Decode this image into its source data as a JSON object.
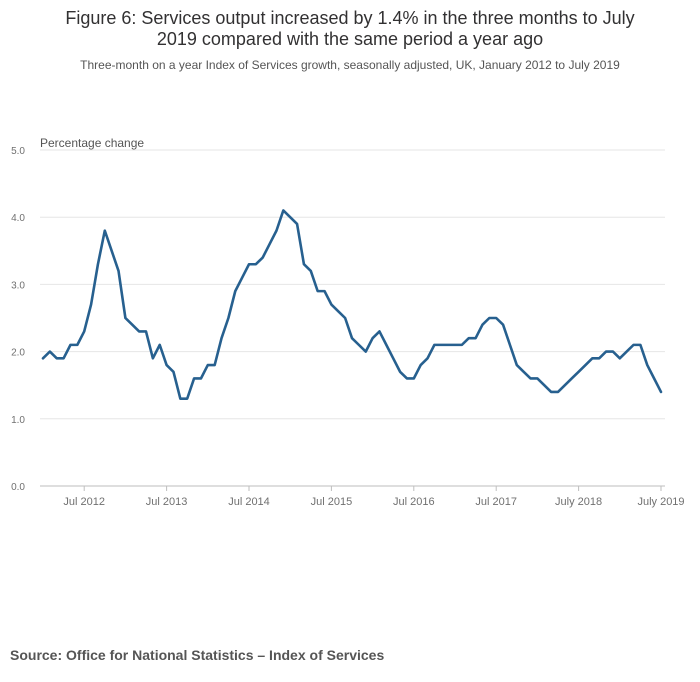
{
  "title": {
    "line1": "Figure 6: Services output increased by 1.4% in the three months to July",
    "line2": "2019 compared with the same period a year ago"
  },
  "subtitle": "Three-month on a year Index of Services growth, seasonally adjusted, UK, January 2012 to July 2019",
  "source": "Source: Office for National Statistics – Index of Services",
  "colors": {
    "line": "#27608f",
    "grid": "#e6e6e6",
    "axis": "#bebebe",
    "text": "#707070"
  },
  "chart_data": {
    "type": "line",
    "title": "Figure 6: Services output increased by 1.4% in the three months to July 2019 compared with the same period a year ago",
    "ylabel": "Percentage change",
    "xlabel": "",
    "ylim": [
      0.0,
      5.0
    ],
    "yticks": [
      0.0,
      1.0,
      2.0,
      3.0,
      4.0,
      5.0
    ],
    "ytick_labels": [
      "0.0",
      "1.0",
      "2.0",
      "3.0",
      "4.0",
      "5.0"
    ],
    "xticks": [
      {
        "index": 6,
        "label": "Jul 2012"
      },
      {
        "index": 18,
        "label": "Jul 2013"
      },
      {
        "index": 30,
        "label": "Jul 2014"
      },
      {
        "index": 42,
        "label": "Jul 2015"
      },
      {
        "index": 54,
        "label": "Jul 2016"
      },
      {
        "index": 66,
        "label": "Jul 2017"
      },
      {
        "index": 78,
        "label": "July 2018"
      },
      {
        "index": 90,
        "label": "July 2019"
      }
    ],
    "series": [
      {
        "name": "Three-month on a year Index of Services growth",
        "start": "January 2012",
        "frequency": "monthly",
        "values": [
          1.9,
          2.0,
          1.9,
          1.9,
          2.1,
          2.1,
          2.3,
          2.7,
          3.3,
          3.8,
          3.5,
          3.2,
          2.5,
          2.4,
          2.3,
          2.3,
          1.9,
          2.1,
          1.8,
          1.7,
          1.3,
          1.3,
          1.6,
          1.6,
          1.8,
          1.8,
          2.2,
          2.5,
          2.9,
          3.1,
          3.3,
          3.3,
          3.4,
          3.6,
          3.8,
          4.1,
          4.0,
          3.9,
          3.3,
          3.2,
          2.9,
          2.9,
          2.7,
          2.6,
          2.5,
          2.2,
          2.1,
          2.0,
          2.2,
          2.3,
          2.1,
          1.9,
          1.7,
          1.6,
          1.6,
          1.8,
          1.9,
          2.1,
          2.1,
          2.1,
          2.1,
          2.1,
          2.2,
          2.2,
          2.4,
          2.5,
          2.5,
          2.4,
          2.1,
          1.8,
          1.7,
          1.6,
          1.6,
          1.5,
          1.4,
          1.4,
          1.5,
          1.6,
          1.7,
          1.8,
          1.9,
          1.9,
          2.0,
          2.0,
          1.9,
          2.0,
          2.1,
          2.1,
          1.8,
          1.6,
          1.4
        ]
      }
    ]
  }
}
